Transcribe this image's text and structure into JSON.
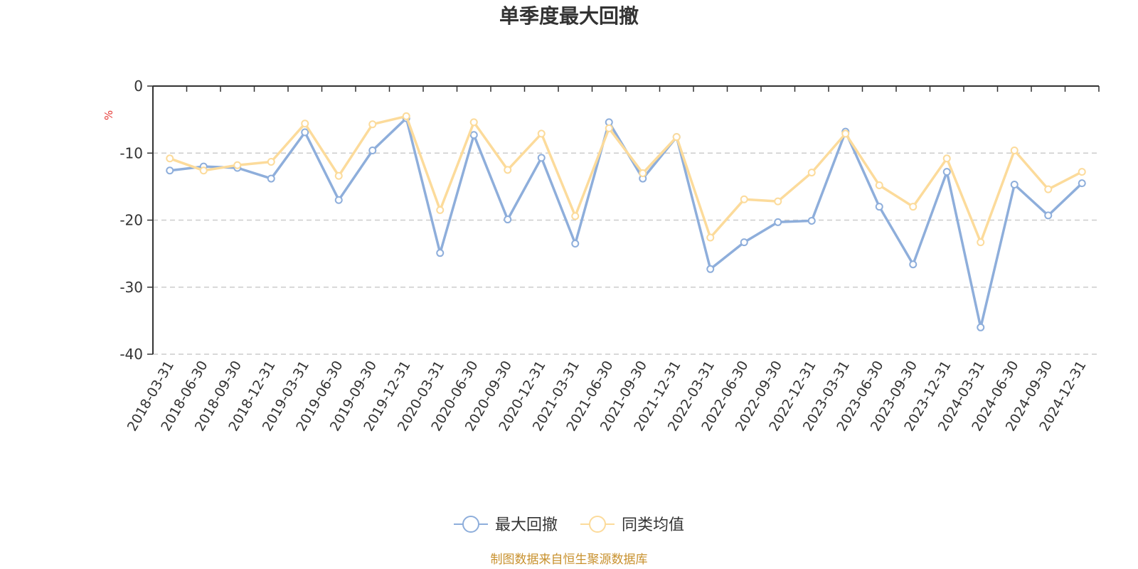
{
  "chart_data": {
    "type": "line",
    "title": "单季度最大回撤",
    "ylabel": "%",
    "ylim": [
      -40,
      0
    ],
    "yticks": [
      "0",
      "-10",
      "-20",
      "-30",
      "-40"
    ],
    "grid": true,
    "legend_position": "bottom-center",
    "categories": [
      "2018-03-31",
      "2018-06-30",
      "2018-09-30",
      "2018-12-31",
      "2019-03-31",
      "2019-06-30",
      "2019-09-30",
      "2019-12-31",
      "2020-03-31",
      "2020-06-30",
      "2020-09-30",
      "2020-12-31",
      "2021-03-31",
      "2021-06-30",
      "2021-09-30",
      "2021-12-31",
      "2022-03-31",
      "2022-06-30",
      "2022-09-30",
      "2022-12-31",
      "2023-03-31",
      "2023-06-30",
      "2023-09-30",
      "2023-12-31",
      "2024-03-31",
      "2024-06-30",
      "2024-09-30",
      "2024-12-31"
    ],
    "series": [
      {
        "name": "最大回撤",
        "color": "#8EAEDB",
        "values": [
          -12.6,
          -12.0,
          -12.2,
          -13.8,
          -6.9,
          -17.0,
          -9.6,
          -4.8,
          -24.9,
          -7.3,
          -19.9,
          -10.7,
          -23.5,
          -5.4,
          -13.8,
          -7.6,
          -27.3,
          -23.3,
          -20.3,
          -20.1,
          -6.8,
          -18.0,
          -26.6,
          -12.8,
          -36.0,
          -14.7,
          -19.3,
          -14.5
        ]
      },
      {
        "name": "同类均值",
        "color": "#FCDB9B",
        "values": [
          -10.8,
          -12.6,
          -11.8,
          -11.3,
          -5.6,
          -13.4,
          -5.7,
          -4.5,
          -18.5,
          -5.4,
          -12.5,
          -7.1,
          -19.4,
          -6.3,
          -13.0,
          -7.6,
          -22.6,
          -16.9,
          -17.2,
          -12.9,
          -7.1,
          -14.8,
          -18.0,
          -10.8,
          -23.3,
          -9.6,
          -15.4,
          -12.8
        ]
      }
    ]
  },
  "axis_unit_color": "#E53935",
  "grid_color": "#CCCCCC",
  "source_text": "制图数据来自恒生聚源数据库",
  "source_color": "#C8912E"
}
